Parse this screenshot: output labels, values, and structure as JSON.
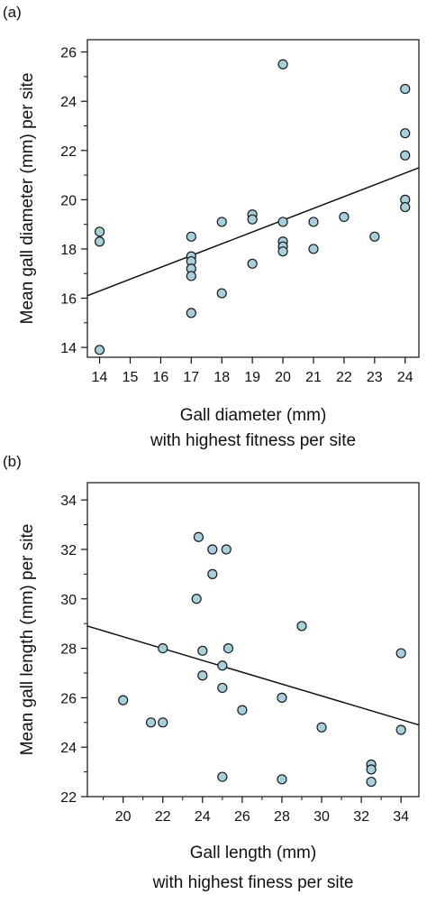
{
  "chart_data": [
    {
      "type": "scatter",
      "panel_label": "(a)",
      "xlabel": "Gall diameter (mm)",
      "xlabel2": "with highest fitness per site",
      "ylabel": "Mean gall diameter (mm) per site",
      "xlim": [
        13.6,
        24.45
      ],
      "ylim": [
        13.6,
        26.5
      ],
      "xticks": [
        14,
        15,
        16,
        17,
        18,
        19,
        20,
        21,
        22,
        23,
        24
      ],
      "yticks": [
        14,
        16,
        18,
        20,
        22,
        24,
        26
      ],
      "x_minor_ticks": [],
      "y_minor_ticks": [
        15,
        17,
        19,
        21,
        23,
        25
      ],
      "points": [
        [
          14,
          18.7
        ],
        [
          14,
          18.3
        ],
        [
          14,
          13.9
        ],
        [
          17,
          18.5
        ],
        [
          17,
          17.7
        ],
        [
          17,
          17.5
        ],
        [
          17,
          17.2
        ],
        [
          17,
          16.9
        ],
        [
          17,
          15.4
        ],
        [
          18,
          19.1
        ],
        [
          18,
          16.2
        ],
        [
          19,
          19.4
        ],
        [
          19,
          19.2
        ],
        [
          19,
          17.4
        ],
        [
          20,
          25.5
        ],
        [
          20,
          19.1
        ],
        [
          20,
          18.3
        ],
        [
          20,
          18.1
        ],
        [
          20,
          17.9
        ],
        [
          21,
          19.1
        ],
        [
          21,
          18.0
        ],
        [
          22,
          19.3
        ],
        [
          23,
          18.5
        ],
        [
          24,
          24.5
        ],
        [
          24,
          22.7
        ],
        [
          24,
          21.8
        ],
        [
          24,
          20.0
        ],
        [
          24,
          19.7
        ]
      ],
      "fit_line": [
        [
          13.6,
          16.1
        ],
        [
          24.45,
          21.3
        ]
      ],
      "marker_fill": "#a6d0dc",
      "marker_stroke": "#1a1a1a",
      "grid": false
    },
    {
      "type": "scatter",
      "panel_label": "(b)",
      "xlabel": "Gall length (mm)",
      "xlabel2": "with highest finess per site",
      "ylabel": "Mean gall length (mm) per site",
      "xlim": [
        18.2,
        34.9
      ],
      "ylim": [
        22,
        34.7
      ],
      "xticks": [
        20,
        22,
        24,
        26,
        28,
        30,
        32,
        34
      ],
      "yticks": [
        22,
        24,
        26,
        28,
        30,
        32,
        34
      ],
      "x_minor_ticks": [
        19,
        21,
        23,
        25,
        27,
        29,
        31,
        33
      ],
      "y_minor_ticks": [
        23,
        25,
        27,
        29,
        31,
        33
      ],
      "points": [
        [
          20,
          25.9
        ],
        [
          21.4,
          25.0
        ],
        [
          22,
          25.0
        ],
        [
          22,
          28.0
        ],
        [
          23.7,
          30.0
        ],
        [
          23.8,
          32.5
        ],
        [
          24,
          27.9
        ],
        [
          24,
          26.9
        ],
        [
          24.5,
          32.0
        ],
        [
          24.5,
          31.0
        ],
        [
          25,
          27.3
        ],
        [
          25,
          26.4
        ],
        [
          25,
          22.8
        ],
        [
          25.2,
          32.0
        ],
        [
          25.3,
          28.0
        ],
        [
          26,
          25.5
        ],
        [
          28,
          26.0
        ],
        [
          28,
          22.7
        ],
        [
          29,
          28.9
        ],
        [
          30,
          24.8
        ],
        [
          32.5,
          23.3
        ],
        [
          32.5,
          23.1
        ],
        [
          32.5,
          22.6
        ],
        [
          34,
          27.8
        ],
        [
          34,
          24.7
        ]
      ],
      "fit_line": [
        [
          18.2,
          28.9
        ],
        [
          34.9,
          24.9
        ]
      ],
      "marker_fill": "#a6d0dc",
      "marker_stroke": "#1a1a1a",
      "grid": false
    }
  ]
}
